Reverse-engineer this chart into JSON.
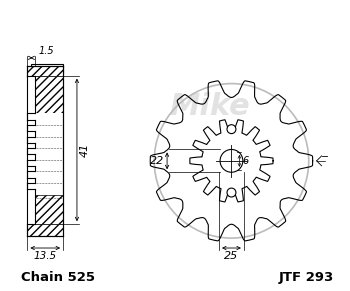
{
  "bg_color": "#ffffff",
  "line_color": "#000000",
  "watermark_color": "#d0d0d0",
  "chain_label": "Chain 525",
  "part_label": "JTF 293",
  "dim_1_5": "1.5",
  "dim_41": "41",
  "dim_13_5": "13.5",
  "dim_22": "22",
  "dim_6": "6",
  "dim_25": "25",
  "figsize": [
    3.5,
    2.91
  ],
  "dpi": 100,
  "n_sprocket_teeth": 14
}
